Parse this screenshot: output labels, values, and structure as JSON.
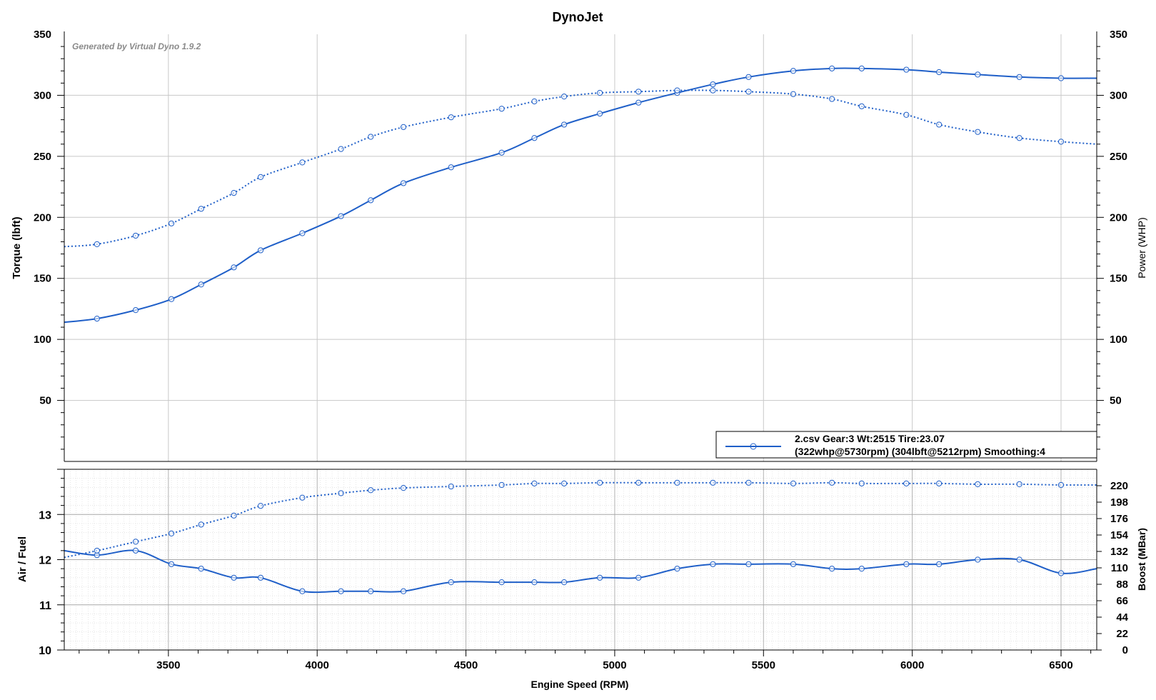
{
  "chart_data": {
    "type": "line",
    "title": "DynoJet",
    "watermark": "Generated by Virtual Dyno 1.9.2",
    "xlabel": "Engine Speed (RPM)",
    "xlim": [
      3150,
      6620
    ],
    "xticks": [
      3500,
      4000,
      4500,
      5000,
      5500,
      6000,
      6500
    ],
    "colors": {
      "series": "#1f5fc8",
      "grid": "#c8c8c8",
      "minor_grid": "#d8d8d8",
      "axis": "#000000"
    },
    "legend": {
      "position": "bottom-right",
      "line1": "2.csv Gear:3 Wt:2515 Tire:23.07",
      "line2": "(322whp@5730rpm) (304lbft@5212rpm) Smoothing:4"
    },
    "top_panel": {
      "ylabel_left": "Torque (lbft)",
      "ylabel_right": "Power (WHP)",
      "ylim": [
        0,
        350
      ],
      "yticks": [
        50,
        100,
        150,
        200,
        250,
        300,
        350
      ],
      "series": [
        {
          "name": "Power (WHP)",
          "style": "solid",
          "x": [
            3150,
            3260,
            3390,
            3510,
            3610,
            3720,
            3810,
            3950,
            4080,
            4180,
            4290,
            4450,
            4620,
            4730,
            4830,
            4950,
            5080,
            5210,
            5330,
            5450,
            5600,
            5730,
            5830,
            5980,
            6090,
            6220,
            6360,
            6500,
            6620
          ],
          "y": [
            114,
            117,
            124,
            133,
            145,
            159,
            173,
            187,
            201,
            214,
            228,
            241,
            253,
            265,
            276,
            285,
            294,
            302,
            309,
            315,
            320,
            322,
            322,
            321,
            319,
            317,
            315,
            314,
            314
          ]
        },
        {
          "name": "Torque (lbft)",
          "style": "dotted",
          "x": [
            3150,
            3260,
            3390,
            3510,
            3610,
            3720,
            3810,
            3950,
            4080,
            4180,
            4290,
            4450,
            4620,
            4730,
            4830,
            4950,
            5080,
            5210,
            5330,
            5450,
            5600,
            5730,
            5830,
            5980,
            6090,
            6220,
            6360,
            6500,
            6620
          ],
          "y": [
            176,
            178,
            185,
            195,
            207,
            220,
            233,
            245,
            256,
            266,
            274,
            282,
            289,
            295,
            299,
            302,
            303,
            304,
            304,
            303,
            301,
            297,
            291,
            284,
            276,
            270,
            265,
            262,
            260
          ]
        }
      ]
    },
    "bottom_panel": {
      "ylabel_left": "Air / Fuel",
      "ylabel_right": "Boost (MBar)",
      "ylim_left": [
        10,
        14
      ],
      "yticks_left": [
        10,
        11,
        12,
        13
      ],
      "ylim_right": [
        0,
        242
      ],
      "yticks_right": [
        0,
        22,
        44,
        66,
        88,
        110,
        132,
        154,
        176,
        198,
        220
      ],
      "series": [
        {
          "name": "Air / Fuel",
          "style": "solid",
          "axis": "left",
          "x": [
            3150,
            3260,
            3390,
            3510,
            3610,
            3720,
            3810,
            3950,
            4080,
            4180,
            4290,
            4450,
            4620,
            4730,
            4830,
            4950,
            5080,
            5210,
            5330,
            5450,
            5600,
            5730,
            5830,
            5980,
            6090,
            6220,
            6360,
            6500,
            6620
          ],
          "y": [
            12.2,
            12.1,
            12.2,
            11.9,
            11.8,
            11.6,
            11.6,
            11.3,
            11.3,
            11.3,
            11.3,
            11.5,
            11.5,
            11.5,
            11.5,
            11.6,
            11.6,
            11.8,
            11.9,
            11.9,
            11.9,
            11.8,
            11.8,
            11.9,
            11.9,
            12.0,
            12.0,
            11.7,
            11.8
          ]
        },
        {
          "name": "Boost (MBar)",
          "style": "dotted",
          "axis": "right",
          "x": [
            3150,
            3260,
            3390,
            3510,
            3610,
            3720,
            3810,
            3950,
            4080,
            4180,
            4290,
            4450,
            4620,
            4730,
            4830,
            4950,
            5080,
            5210,
            5330,
            5450,
            5600,
            5730,
            5830,
            5980,
            6090,
            6220,
            6360,
            6500,
            6620
          ],
          "y": [
            124,
            133,
            145,
            156,
            168,
            180,
            193,
            204,
            210,
            214,
            217,
            219,
            221,
            223,
            223,
            224,
            224,
            224,
            224,
            224,
            223,
            224,
            223,
            223,
            223,
            222,
            222,
            221,
            221
          ]
        }
      ]
    }
  }
}
